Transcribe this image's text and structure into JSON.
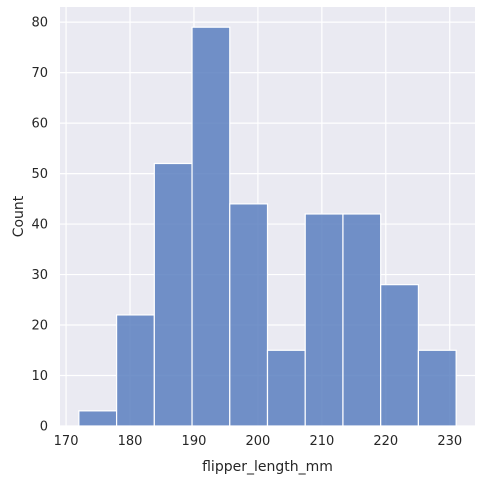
{
  "chart_data": {
    "type": "bar",
    "title": "",
    "xlabel": "flipper_length_mm",
    "ylabel": "Count",
    "bins": [
      {
        "x0": 172.0,
        "x1": 177.9,
        "count": 3
      },
      {
        "x0": 177.9,
        "x1": 183.8,
        "count": 22
      },
      {
        "x0": 183.8,
        "x1": 189.7,
        "count": 52
      },
      {
        "x0": 189.7,
        "x1": 195.6,
        "count": 79
      },
      {
        "x0": 195.6,
        "x1": 201.5,
        "count": 44
      },
      {
        "x0": 201.5,
        "x1": 207.4,
        "count": 15
      },
      {
        "x0": 207.4,
        "x1": 213.3,
        "count": 42
      },
      {
        "x0": 213.3,
        "x1": 219.2,
        "count": 42
      },
      {
        "x0": 219.2,
        "x1": 225.1,
        "count": 28
      },
      {
        "x0": 225.1,
        "x1": 231.0,
        "count": 15
      }
    ],
    "xlim": [
      169.05,
      233.95
    ],
    "ylim": [
      0,
      83
    ],
    "xticks": [
      170,
      180,
      190,
      200,
      210,
      220,
      230
    ],
    "yticks": [
      0,
      10,
      20,
      30,
      40,
      50,
      60,
      70,
      80
    ],
    "grid": true,
    "colors": {
      "bar": "#5b7fbf",
      "background": "#eaeaf2",
      "grid": "#ffffff",
      "bar_edge": "#ffffff"
    }
  }
}
